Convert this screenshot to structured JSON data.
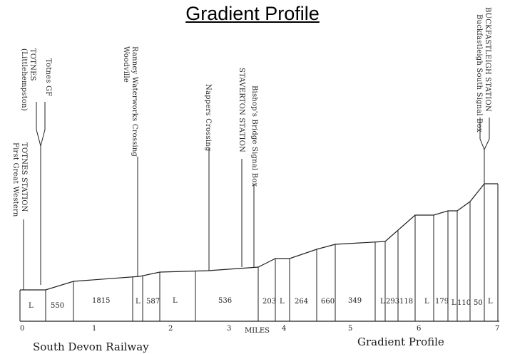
{
  "title": "Gradient Profile",
  "miles_label": "MILES",
  "mile_ticks": [
    "0",
    "1",
    "2",
    "3",
    "4",
    "5",
    "6",
    "7"
  ],
  "stations": [
    {
      "id": "totnes-station",
      "lines": [
        "TOTNES STATION",
        "First Great Western"
      ]
    },
    {
      "id": "totnes-littlehempston",
      "lines": [
        "TOTNES",
        "(Littlehempston)"
      ]
    },
    {
      "id": "totnes-gf",
      "lines": [
        "Totnes GF"
      ]
    },
    {
      "id": "ranney-waterworks",
      "lines": [
        "Ranney Waterworks Crossing",
        "Woodville"
      ]
    },
    {
      "id": "nappers-crossing",
      "lines": [
        "Nappers Crossing"
      ]
    },
    {
      "id": "staverton-station",
      "lines": [
        "STAVERTON STATION"
      ]
    },
    {
      "id": "bishops-bridge",
      "lines": [
        "Bishop's Bridge Signal Box"
      ]
    },
    {
      "id": "buckfastleigh",
      "lines": [
        "BUCKFASTLEIGH STATION",
        "Buckfastleigh South Signal Box"
      ]
    }
  ],
  "gradient_labels": [
    "L",
    "550",
    "1815",
    "L",
    "587",
    "L",
    "536",
    "203",
    "L",
    "264",
    "660",
    "349",
    "L",
    "293",
    "118",
    "L",
    "179",
    "L",
    "110",
    "50",
    "L"
  ],
  "footer": {
    "left": "South Devon Railway",
    "right": "Gradient Profile"
  }
}
